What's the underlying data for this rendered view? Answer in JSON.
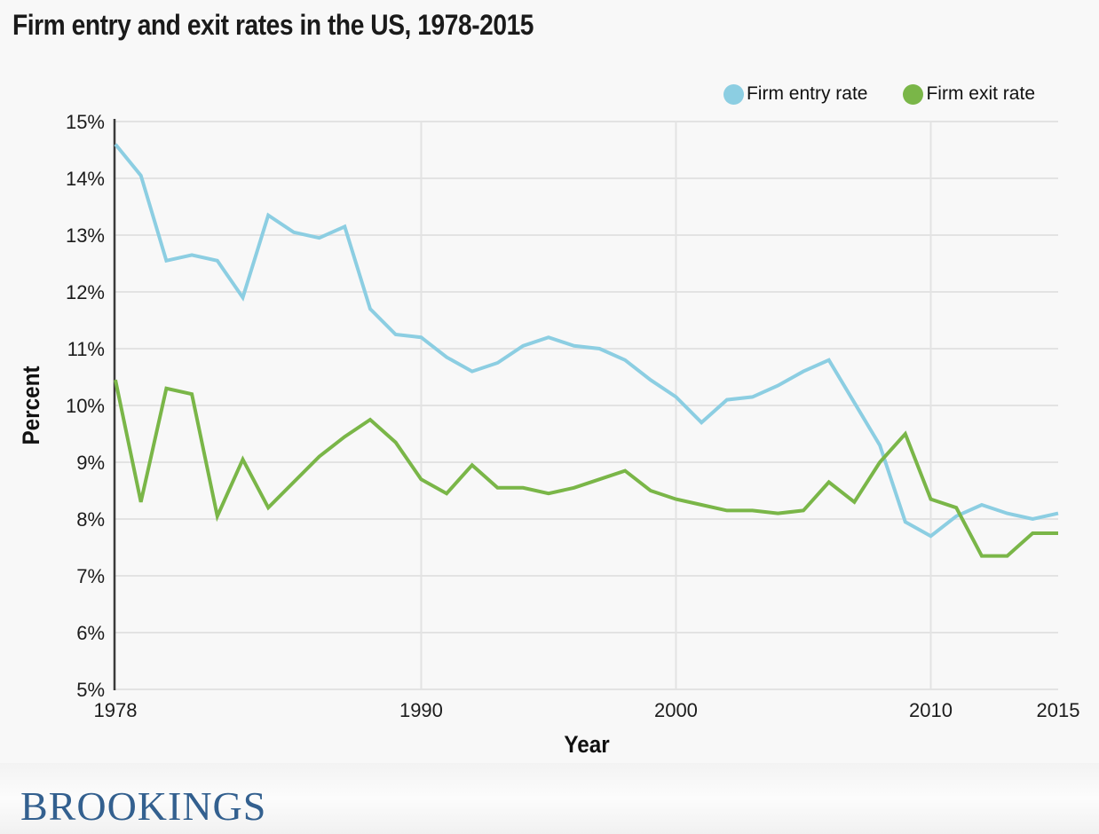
{
  "page": {
    "background": "#f8f8f8"
  },
  "chart_data": {
    "type": "line",
    "title": "Firm entry and exit rates in the US, 1978-2015",
    "xlabel": "Year",
    "ylabel": "Percent",
    "x": [
      1978,
      1979,
      1980,
      1981,
      1982,
      1983,
      1984,
      1985,
      1986,
      1987,
      1988,
      1989,
      1990,
      1991,
      1992,
      1993,
      1994,
      1995,
      1996,
      1997,
      1998,
      1999,
      2000,
      2001,
      2002,
      2003,
      2004,
      2005,
      2006,
      2007,
      2008,
      2009,
      2010,
      2011,
      2012,
      2013,
      2014,
      2015
    ],
    "series": [
      {
        "name": "Firm entry rate",
        "color": "#8ccee2",
        "values": [
          14.6,
          14.05,
          12.55,
          12.65,
          12.55,
          11.9,
          13.35,
          13.05,
          12.95,
          13.15,
          11.7,
          11.25,
          11.2,
          10.85,
          10.6,
          10.75,
          11.05,
          11.2,
          11.05,
          11.0,
          10.8,
          10.45,
          10.15,
          9.7,
          10.1,
          10.15,
          10.35,
          10.6,
          10.8,
          10.05,
          9.3,
          7.95,
          7.7,
          8.05,
          8.25,
          8.1,
          8.0,
          8.1
        ]
      },
      {
        "name": "Firm exit rate",
        "color": "#7ab648",
        "values": [
          10.45,
          8.3,
          10.3,
          10.2,
          8.05,
          9.05,
          8.2,
          8.65,
          9.1,
          9.45,
          9.75,
          9.35,
          8.7,
          8.45,
          8.95,
          8.55,
          8.55,
          8.45,
          8.55,
          8.7,
          8.85,
          8.5,
          8.35,
          8.25,
          8.15,
          8.15,
          8.1,
          8.15,
          8.65,
          8.3,
          9.0,
          9.5,
          8.35,
          8.2,
          7.35,
          7.35,
          7.75,
          7.75
        ]
      }
    ],
    "ylim": [
      5,
      15
    ],
    "xlim": [
      1978,
      2015
    ],
    "yticks": [
      {
        "value": 15,
        "label": "15%"
      },
      {
        "value": 14,
        "label": "14%"
      },
      {
        "value": 13,
        "label": "13%"
      },
      {
        "value": 12,
        "label": "12%"
      },
      {
        "value": 11,
        "label": "11%"
      },
      {
        "value": 10,
        "label": "10%"
      },
      {
        "value": 9,
        "label": "9%"
      },
      {
        "value": 8,
        "label": "8%"
      },
      {
        "value": 7,
        "label": "7%"
      },
      {
        "value": 6,
        "label": "6%"
      },
      {
        "value": 5,
        "label": "5%"
      }
    ],
    "xticks": [
      {
        "value": 1978,
        "label": "1978",
        "grid": false
      },
      {
        "value": 1990,
        "label": "1990",
        "grid": true
      },
      {
        "value": 2000,
        "label": "2000",
        "grid": true
      },
      {
        "value": 2010,
        "label": "2010",
        "grid": true
      },
      {
        "value": 2015,
        "label": "2015",
        "grid": false
      }
    ],
    "grid": true,
    "legend_position": "top-right",
    "colors": {
      "gridline": "#e3e3e3",
      "axis_spine": "#3b3b3b",
      "tick_text": "#1c1c1c"
    }
  },
  "branding": {
    "logo_text": "BROOKINGS",
    "logo_color": "#33608f"
  }
}
